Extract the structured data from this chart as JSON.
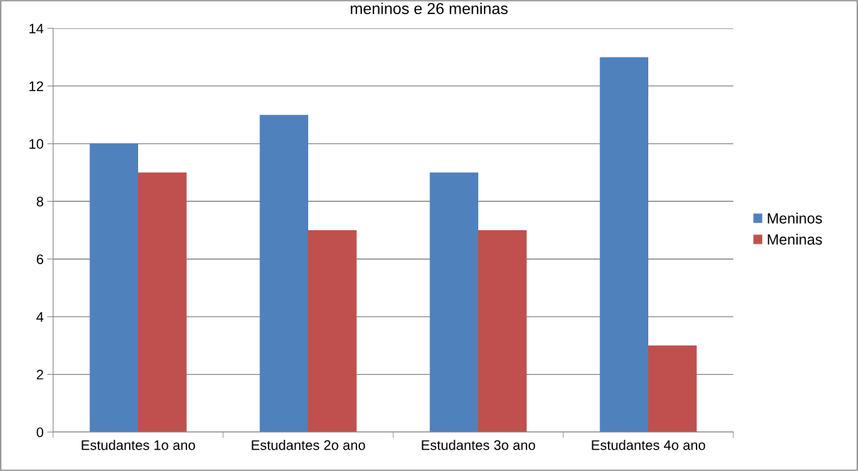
{
  "chart_data": {
    "type": "bar",
    "title": "meninos e 26 meninas",
    "categories": [
      "Estudantes 1o ano",
      "Estudantes 2o ano",
      "Estudantes 3o ano",
      "Estudantes 4o ano"
    ],
    "series": [
      {
        "name": "Meninos",
        "color": "#4f81bd",
        "values": [
          10,
          11,
          9,
          13
        ]
      },
      {
        "name": "Meninas",
        "color": "#c0504d",
        "values": [
          9,
          7,
          7,
          3
        ]
      }
    ],
    "ylim": [
      0,
      14
    ],
    "yticks": [
      0,
      2,
      4,
      6,
      8,
      10,
      12,
      14
    ],
    "grid": "y",
    "legend": "right"
  }
}
